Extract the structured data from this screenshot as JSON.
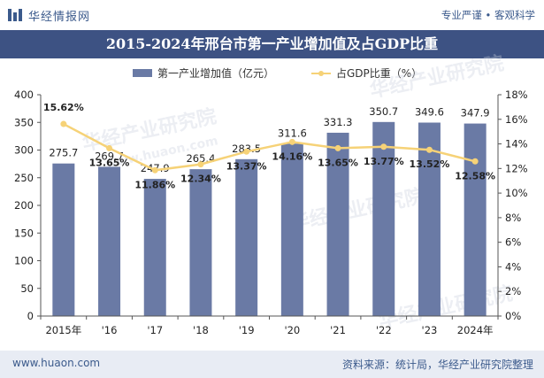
{
  "header": {
    "brand_name": "华经情报网",
    "slogan": "专业严谨 • 客观科学"
  },
  "footer": {
    "url": "www.huaon.com",
    "source": "资料来源：统计局，华经产业研究院整理"
  },
  "watermark": {
    "text": "华经产业研究院",
    "url": "www.huaon.com"
  },
  "colors": {
    "bar": "#6a7aa5",
    "line": "#f6d277",
    "title_bg": "#3d5283",
    "accent": "#3b5a8c"
  },
  "chart_data": {
    "type": "bar",
    "title": "2015-2024年邢台市第一产业增加值及占GDP比重",
    "categories": [
      "2015年",
      "'16",
      "'17",
      "'18",
      "'19",
      "'20",
      "'21",
      "'22",
      "'23",
      "2024年"
    ],
    "series": [
      {
        "name": "第一产业增加值（亿元）",
        "type": "bar",
        "axis": "left",
        "values": [
          275.7,
          269.7,
          247.9,
          265.4,
          283.5,
          311.6,
          331.3,
          350.7,
          349.6,
          347.9
        ],
        "labels": [
          "275.7",
          "269.7",
          "247.9",
          "265.4",
          "283.5",
          "311.6",
          "331.3",
          "350.7",
          "349.6",
          "347.9"
        ]
      },
      {
        "name": "占GDP比重（%）",
        "type": "line",
        "axis": "right",
        "values": [
          15.62,
          13.65,
          11.86,
          12.34,
          13.37,
          14.16,
          13.65,
          13.77,
          13.52,
          12.58
        ],
        "labels": [
          "15.62%",
          "13.65%",
          "11.86%",
          "12.34%",
          "13.37%",
          "14.16%",
          "13.65%",
          "13.77%",
          "13.52%",
          "12.58%"
        ]
      }
    ],
    "y_left": {
      "range": [
        0,
        400
      ],
      "ticks": [
        "0",
        "50",
        "100",
        "150",
        "200",
        "250",
        "300",
        "350",
        "400"
      ]
    },
    "y_right": {
      "range": [
        0,
        18
      ],
      "ticks": [
        "0%",
        "2%",
        "4%",
        "6%",
        "8%",
        "10%",
        "12%",
        "14%",
        "16%",
        "18%"
      ]
    },
    "grid": false,
    "legend_position": "top-center"
  }
}
